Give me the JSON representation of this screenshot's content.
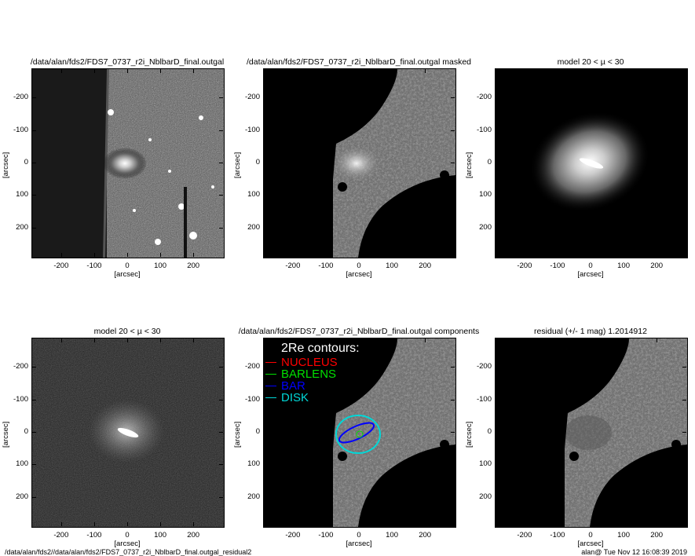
{
  "panels": [
    {
      "title": "/data/alan/fds2/FDS7_0737_r2i_NblbarD_final.outgal",
      "type": "raw"
    },
    {
      "title": "/data/alan/fds2/FDS7_0737_r2i_NblbarD_final.outgal masked",
      "type": "masked"
    },
    {
      "title": "model 20 < µ < 30",
      "type": "model"
    },
    {
      "title": "model 20 < µ < 30",
      "type": "model-noise"
    },
    {
      "title": "/data/alan/fds2/FDS7_0737_r2i_NblbarD_final.outgal components",
      "type": "components"
    },
    {
      "title": "residual  (+/- 1 mag)        1.2014912",
      "type": "residual"
    }
  ],
  "axes": {
    "xlabel": "[arcsec]",
    "ylabel": "[arcsec]",
    "range": [
      -290,
      290
    ],
    "ticks": [
      -200,
      -100,
      0,
      100,
      200
    ]
  },
  "legend": {
    "title": "2Re contours:",
    "items": [
      {
        "label": "NUCLEUS",
        "color": "#ff0000"
      },
      {
        "label": "BARLENS",
        "color": "#00e000"
      },
      {
        "label": "BAR",
        "color": "#0000ff"
      },
      {
        "label": "DISK",
        "color": "#00d8d8"
      }
    ]
  },
  "footer": {
    "left": "/data/alan/fds2//data/alan/fds2/FDS7_0737_r2i_NblbarD_final.outgal_residual2",
    "right": "alan@  Tue Nov 12 16:08:39 2019"
  }
}
